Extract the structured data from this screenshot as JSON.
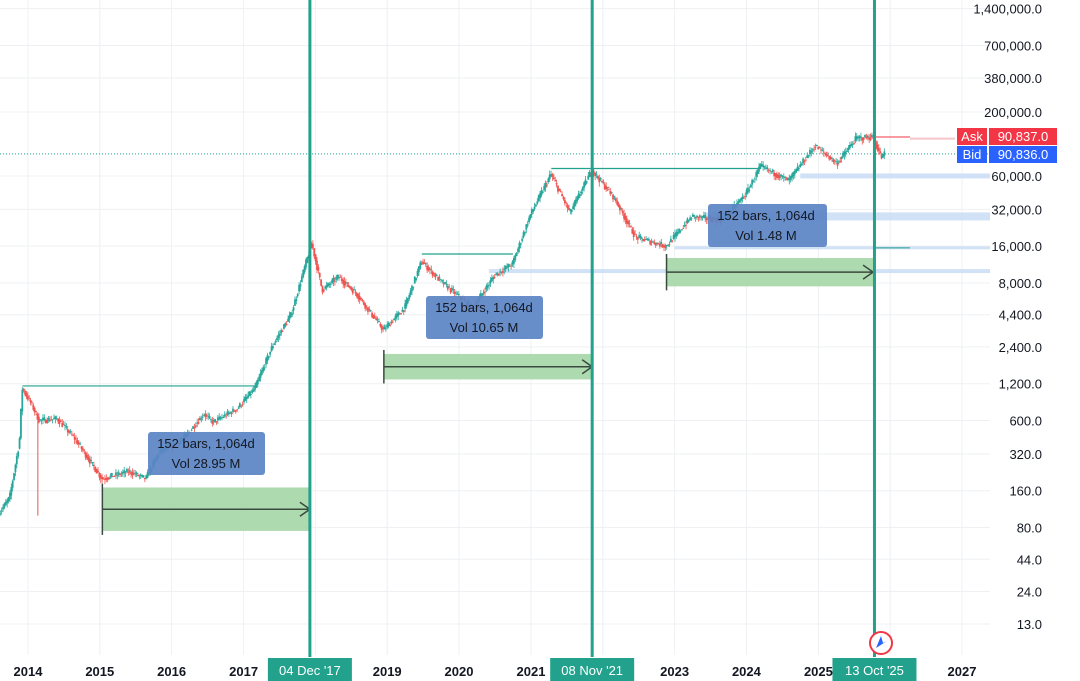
{
  "chart_data": {
    "type": "candlestick",
    "title": "",
    "y_scale": "log",
    "ylim": [
      10,
      1600000
    ],
    "xlim": [
      "2013-08",
      "2027-06"
    ],
    "grid": true,
    "y_ticks": [
      {
        "value": 1400000,
        "label": "1,400,000.0"
      },
      {
        "value": 700000,
        "label": "700,000.0"
      },
      {
        "value": 380000,
        "label": "380,000.0"
      },
      {
        "value": 200000,
        "label": "200,000.0"
      },
      {
        "value": 60000,
        "label": "60,000.0"
      },
      {
        "value": 32000,
        "label": "32,000.0"
      },
      {
        "value": 16000,
        "label": "16,000.0"
      },
      {
        "value": 8000,
        "label": "8,000.0"
      },
      {
        "value": 4400,
        "label": "4,400.0"
      },
      {
        "value": 2400,
        "label": "2,400.0"
      },
      {
        "value": 1200,
        "label": "1,200.0"
      },
      {
        "value": 600,
        "label": "600.0"
      },
      {
        "value": 320,
        "label": "320.0"
      },
      {
        "value": 160,
        "label": "160.0"
      },
      {
        "value": 80,
        "label": "80.0"
      },
      {
        "value": 44,
        "label": "44.0"
      },
      {
        "value": 24,
        "label": "24.0"
      },
      {
        "value": 13,
        "label": "13.0"
      }
    ],
    "x_ticks": [
      {
        "date": "2014-01-01",
        "label": "2014"
      },
      {
        "date": "2015-01-01",
        "label": "2015"
      },
      {
        "date": "2016-01-01",
        "label": "2016"
      },
      {
        "date": "2017-01-01",
        "label": "2017"
      },
      {
        "date": "2019-01-01",
        "label": "2019"
      },
      {
        "date": "2020-01-01",
        "label": "2020"
      },
      {
        "date": "2021-01-01",
        "label": "2021"
      },
      {
        "date": "2023-01-01",
        "label": "2023"
      },
      {
        "date": "2024-01-01",
        "label": "2024"
      },
      {
        "date": "2025-01-01",
        "label": "2025"
      },
      {
        "date": "2027-01-01",
        "label": "2027"
      }
    ],
    "vertical_lines": [
      {
        "date": "2017-12-04",
        "label": "04 Dec '17"
      },
      {
        "date": "2021-11-08",
        "label": "08 Nov '21"
      },
      {
        "date": "2025-10-13",
        "label": "13 Oct '25"
      }
    ],
    "price_path": [
      [
        "2013-08-01",
        100
      ],
      [
        "2013-10-01",
        140
      ],
      [
        "2013-11-20",
        400
      ],
      [
        "2013-12-04",
        1100
      ],
      [
        "2014-01-15",
        850
      ],
      [
        "2014-03-01",
        600
      ],
      [
        "2014-06-01",
        620
      ],
      [
        "2014-09-01",
        420
      ],
      [
        "2015-01-14",
        200
      ],
      [
        "2015-06-01",
        230
      ],
      [
        "2015-08-24",
        200
      ],
      [
        "2015-11-01",
        330
      ],
      [
        "2016-03-01",
        420
      ],
      [
        "2016-06-15",
        680
      ],
      [
        "2016-08-01",
        580
      ],
      [
        "2016-12-01",
        750
      ],
      [
        "2017-03-01",
        1100
      ],
      [
        "2017-06-01",
        2500
      ],
      [
        "2017-09-01",
        4400
      ],
      [
        "2017-12-15",
        17000
      ],
      [
        "2018-02-06",
        7000
      ],
      [
        "2018-05-01",
        9000
      ],
      [
        "2018-08-01",
        6500
      ],
      [
        "2018-12-15",
        3300
      ],
      [
        "2019-04-01",
        5000
      ],
      [
        "2019-06-26",
        12000
      ],
      [
        "2019-10-01",
        8300
      ],
      [
        "2020-03-12",
        5000
      ],
      [
        "2020-07-01",
        9200
      ],
      [
        "2020-10-01",
        11500
      ],
      [
        "2020-12-31",
        29000
      ],
      [
        "2021-04-14",
        62000
      ],
      [
        "2021-07-20",
        30000
      ],
      [
        "2021-11-08",
        67000
      ],
      [
        "2022-03-01",
        40000
      ],
      [
        "2022-06-18",
        19000
      ],
      [
        "2022-11-21",
        16000
      ],
      [
        "2023-04-01",
        28000
      ],
      [
        "2023-09-01",
        26000
      ],
      [
        "2024-01-01",
        43000
      ],
      [
        "2024-03-14",
        72000
      ],
      [
        "2024-08-05",
        55000
      ],
      [
        "2024-12-17",
        106000
      ],
      [
        "2025-04-07",
        76000
      ],
      [
        "2025-07-14",
        122000
      ],
      [
        "2025-10-06",
        125000
      ],
      [
        "2025-11-21",
        84000
      ],
      [
        "2025-12-03",
        90836
      ]
    ],
    "measure_boxes": [
      {
        "start": "2015-01-14",
        "end": "2017-12-04",
        "price_top": 170,
        "price_bottom": 75,
        "label_bars": "152 bars, 1,064d",
        "label_vol": "Vol 28.95 M"
      },
      {
        "start": "2018-12-15",
        "end": "2021-11-08",
        "price_top": 2100,
        "price_bottom": 1300,
        "label_bars": "152 bars, 1,064d",
        "label_vol": "Vol 10.65 M"
      },
      {
        "start": "2022-11-21",
        "end": "2025-10-06",
        "price_top": 12800,
        "price_bottom": 7500,
        "label_bars": "152 bars, 1,064d",
        "label_vol": "Vol 1.48 M"
      }
    ],
    "range_lines": [
      {
        "start": "2013-12-04",
        "end": "2017-03-01",
        "price": 1150
      },
      {
        "start": "2019-06-26",
        "end": "2020-10-01",
        "price": 13800
      },
      {
        "start": "2021-04-14",
        "end": "2024-03-14",
        "price": 69000
      }
    ],
    "ask": {
      "label": "Ask",
      "value": "90,837.0",
      "color": "#f23645"
    },
    "bid": {
      "label": "Bid",
      "value": "90,836.0",
      "color": "#2962ff"
    },
    "colors": {
      "up": "#26a69a",
      "down": "#ef5350",
      "vline": "#22a18c",
      "measure_fill": "#a5d6a7",
      "label_box": "#5b84c4"
    }
  }
}
